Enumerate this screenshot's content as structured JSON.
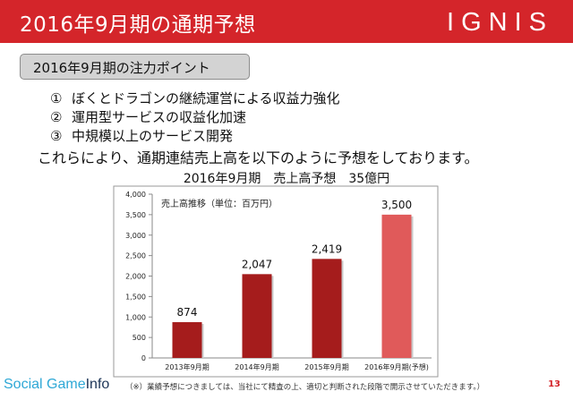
{
  "header": {
    "title": "2016年9月期の通期予想",
    "logo": "IGNIS",
    "color": "#d4252a"
  },
  "section": {
    "title": "2016年9月期の注力ポイント"
  },
  "points": [
    {
      "num": "①",
      "text": "ぼくとドラゴンの継続運営による収益力強化"
    },
    {
      "num": "②",
      "text": "運用型サービスの収益化加速"
    },
    {
      "num": "③",
      "text": "中規模以上のサービス開発"
    }
  ],
  "summary": "これらにより、通期連結売上高を以下のように予想をしております。",
  "forecast_line": "2016年9月期　売上高予想　35億円",
  "chart_data": {
    "type": "bar",
    "title": "売上高推移（単位：百万円）",
    "categories": [
      "2013年9月期",
      "2014年9月期",
      "2015年9月期",
      "2016年9月期(予想)"
    ],
    "values": [
      874,
      2047,
      2419,
      3500
    ],
    "data_labels": [
      "874",
      "2,047",
      "2,419",
      "3,500"
    ],
    "ylim": [
      0,
      4000
    ],
    "yticks": [
      "0",
      "500",
      "1,000",
      "1,500",
      "2,000",
      "2,500",
      "3,000",
      "3,500",
      "4,000"
    ],
    "ytick_values": [
      0,
      500,
      1000,
      1500,
      2000,
      2500,
      3000,
      3500,
      4000
    ],
    "bar_colors": [
      "#a51c1c",
      "#a51c1c",
      "#a51c1c",
      "#e05a5a"
    ],
    "grid": false
  },
  "footer": {
    "brand_part1": "Social Game",
    "brand_part2": "Info",
    "note": "（※）業績予想につきましては、当社にて精査の上、適切と判断された段階で開示させていただきます。）",
    "page": "13"
  }
}
